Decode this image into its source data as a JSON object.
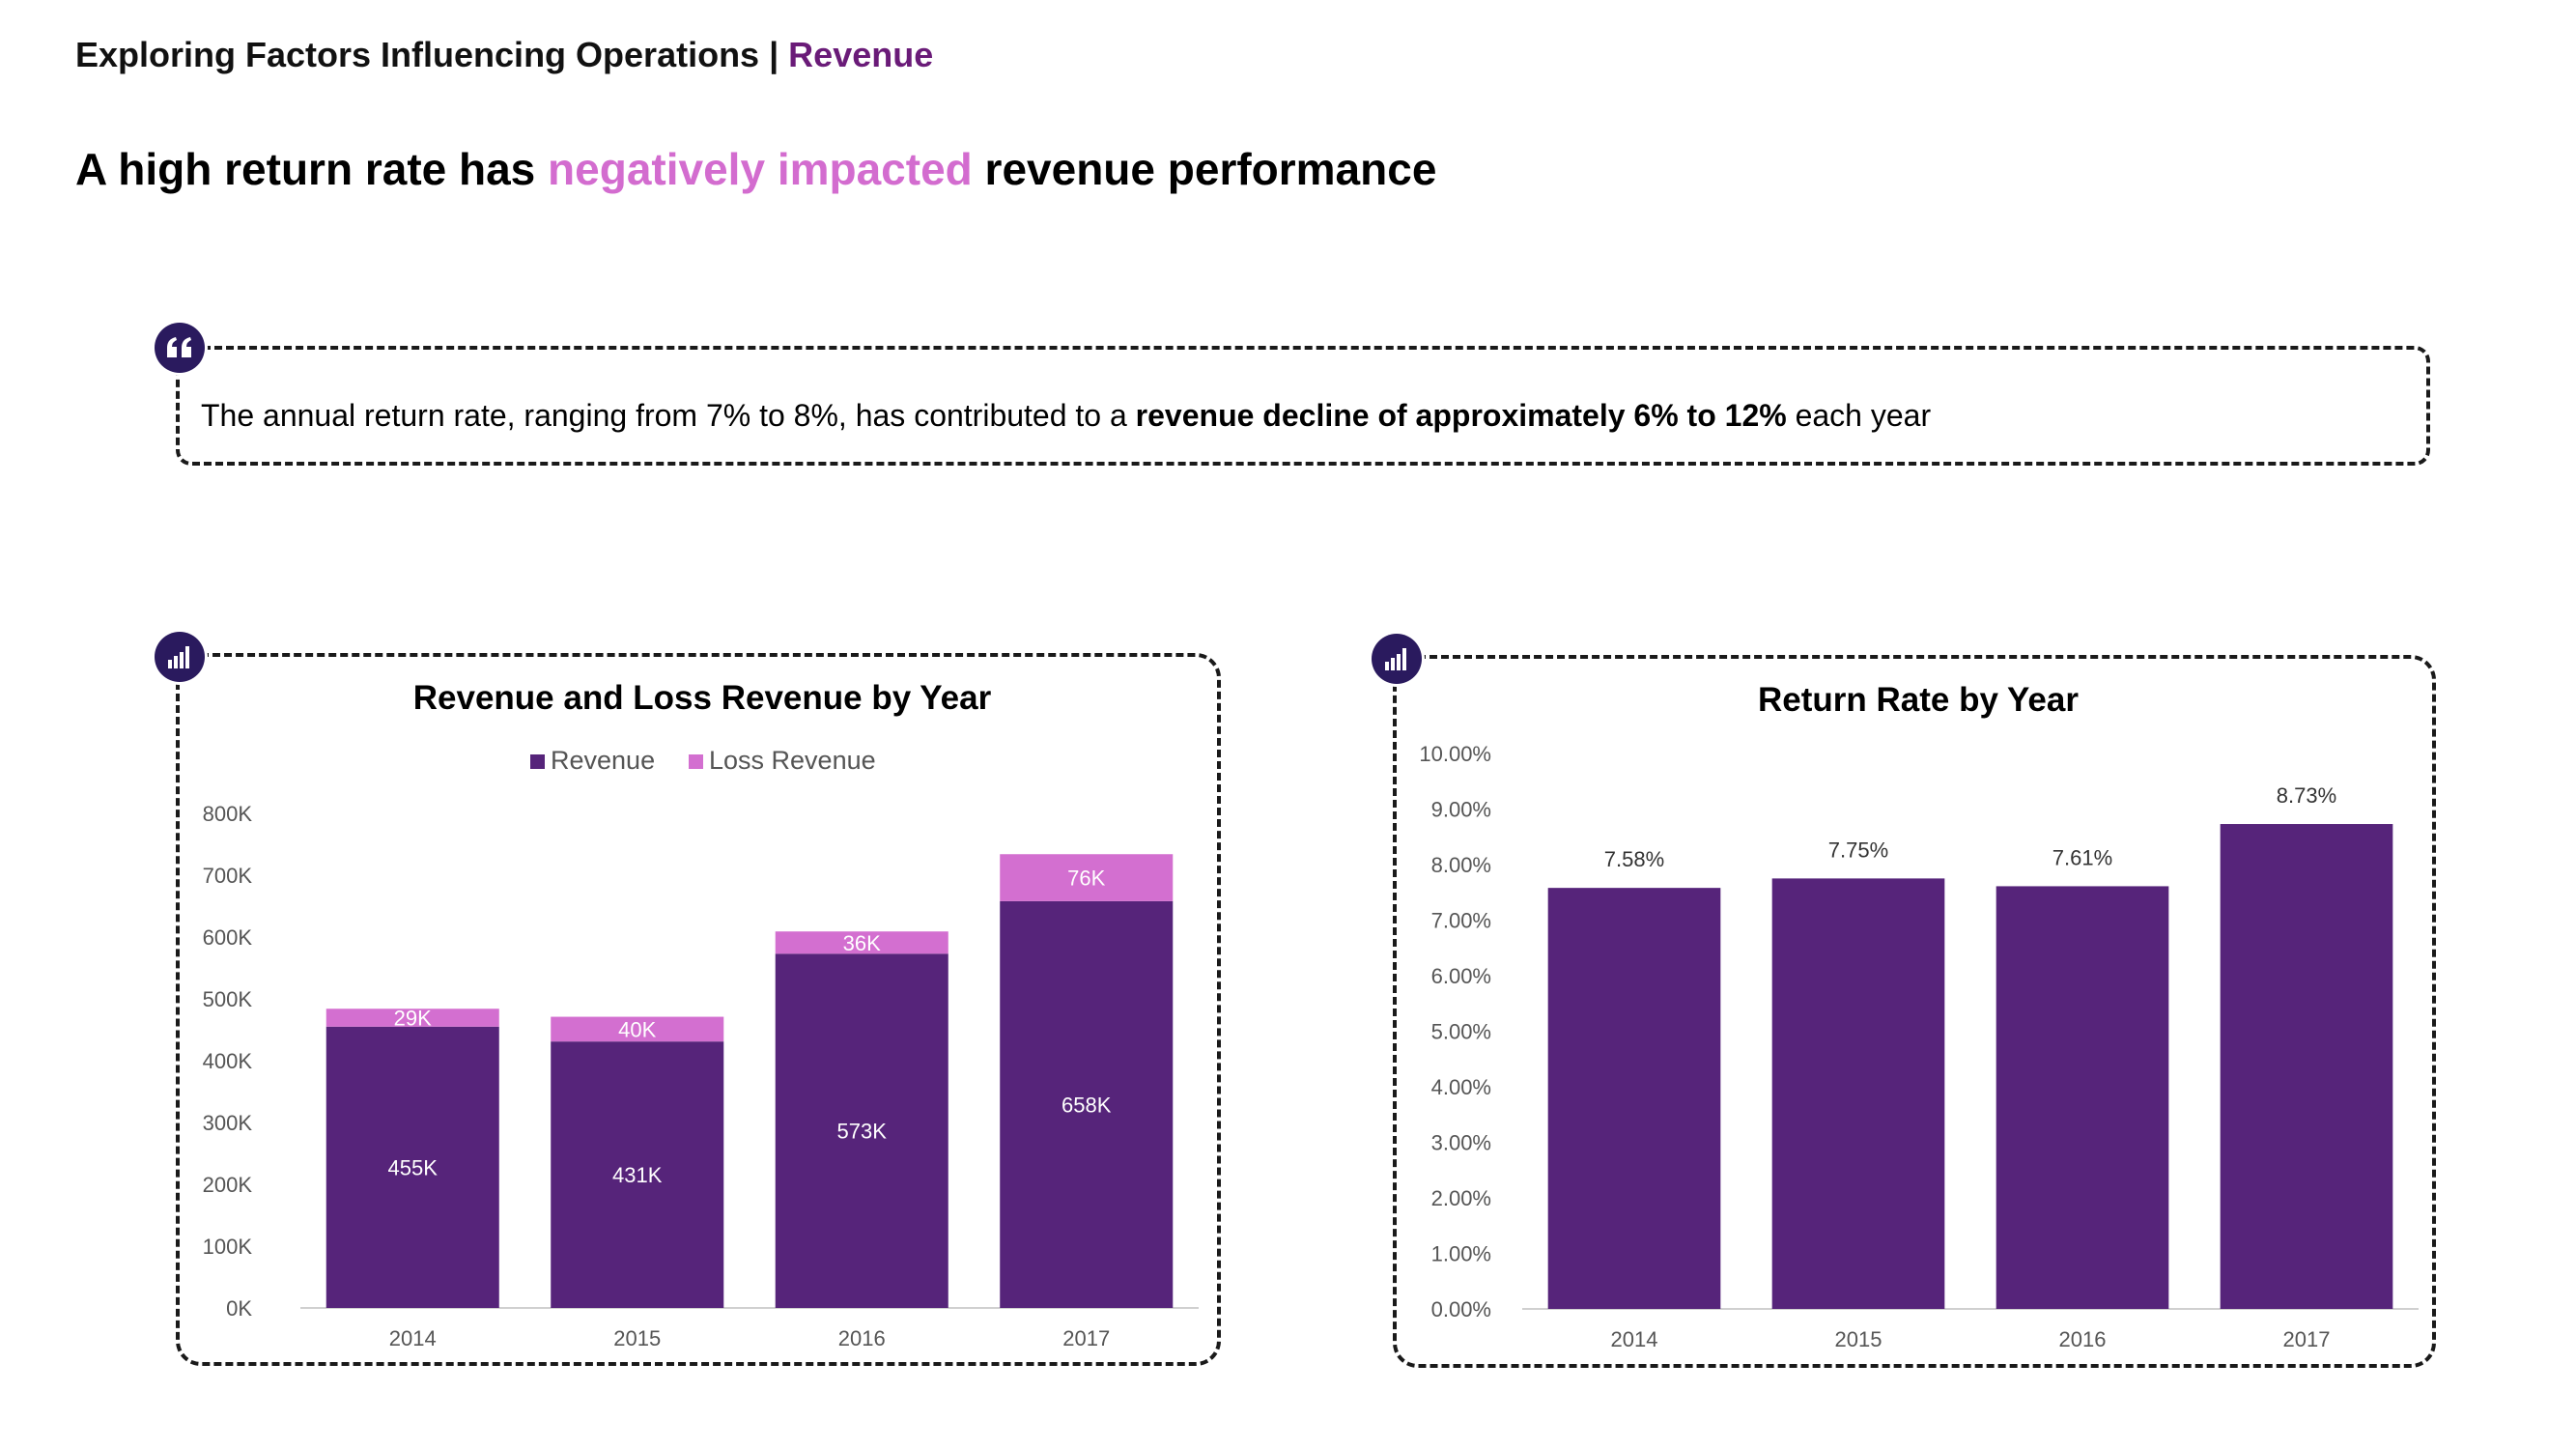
{
  "header": {
    "breadcrumb_main": "Exploring Factors Influencing Operations |",
    "breadcrumb_accent": "Revenue",
    "headline_pre": "A high return rate has",
    "headline_highlight": "negatively impacted",
    "headline_post": "revenue performance"
  },
  "quote": {
    "icon": "quote-icon",
    "text_pre": "The annual return rate, ranging from 7% to 8%, has contributed to a",
    "text_bold": "revenue decline of approximately 6% to 12%",
    "text_post": "each year"
  },
  "colors": {
    "brand": "#6a1b78",
    "highlight": "#d36ccf",
    "revenue": "#56247a",
    "loss": "#d36fd0"
  },
  "chart_data": [
    {
      "type": "bar",
      "stacked": true,
      "title": "Revenue and Loss Revenue by Year",
      "legend_position": "top",
      "categories": [
        "2014",
        "2015",
        "2016",
        "2017"
      ],
      "series": [
        {
          "name": "Revenue",
          "values": [
            455000,
            431000,
            573000,
            658000
          ],
          "labels": [
            "455K",
            "431K",
            "573K",
            "658K"
          ]
        },
        {
          "name": "Loss Revenue",
          "values": [
            29000,
            40000,
            36000,
            76000
          ],
          "labels": [
            "29K",
            "40K",
            "36K",
            "76K"
          ]
        }
      ],
      "ylim": [
        0,
        800000
      ],
      "yticks": [
        0,
        100000,
        200000,
        300000,
        400000,
        500000,
        600000,
        700000,
        800000
      ],
      "ytick_labels": [
        "0K",
        "100K",
        "200K",
        "300K",
        "400K",
        "500K",
        "600K",
        "700K",
        "800K"
      ],
      "grid": false
    },
    {
      "type": "bar",
      "title": "Return Rate by Year",
      "categories": [
        "2014",
        "2015",
        "2016",
        "2017"
      ],
      "values": [
        7.58,
        7.75,
        7.61,
        8.73
      ],
      "labels": [
        "7.58%",
        "7.75%",
        "7.61%",
        "8.73%"
      ],
      "ylim": [
        0,
        10
      ],
      "yticks": [
        0,
        1,
        2,
        3,
        4,
        5,
        6,
        7,
        8,
        9,
        10
      ],
      "ytick_labels": [
        "0.00%",
        "1.00%",
        "2.00%",
        "3.00%",
        "4.00%",
        "5.00%",
        "6.00%",
        "7.00%",
        "8.00%",
        "9.00%",
        "10.00%"
      ],
      "grid": false
    }
  ],
  "chart_icons": [
    "bar-chart-icon",
    "bar-chart-icon"
  ]
}
